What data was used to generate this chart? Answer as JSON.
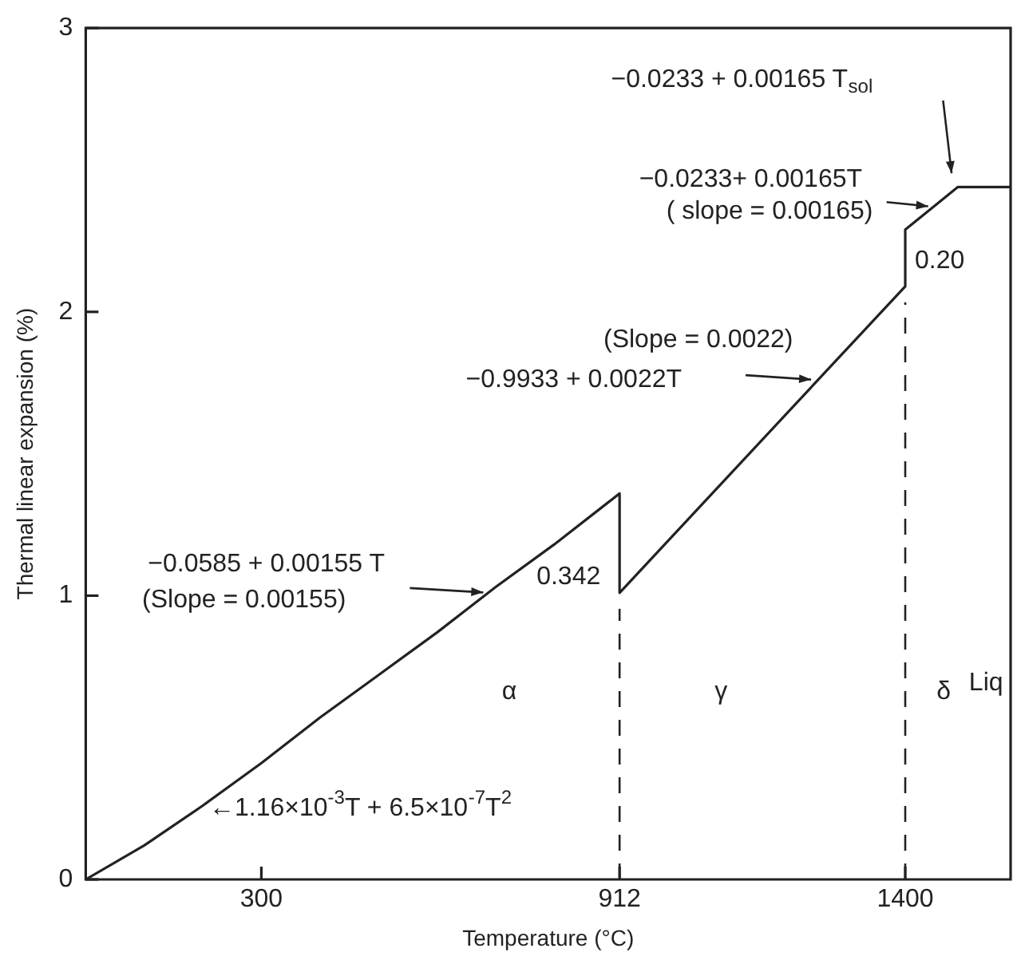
{
  "chart_data": {
    "type": "line",
    "xlabel": "Temperature (°C)",
    "ylabel": "Thermal linear expansion (%)",
    "series": [
      {
        "color": "#222222",
        "x": [
          0,
          100,
          200,
          300,
          400,
          500,
          600,
          700,
          800,
          912,
          912,
          1400,
          1400,
          1490,
          1580
        ],
        "values": [
          0,
          0.12,
          0.26,
          0.41,
          0.57,
          0.72,
          0.87,
          1.03,
          1.18,
          1.36,
          1.01,
          2.09,
          2.29,
          2.44,
          2.44
        ]
      }
    ],
    "xlim": [
      0,
      1580
    ],
    "xticks": [
      300,
      912,
      1400
    ],
    "ylim": [
      0,
      3
    ],
    "yticks": [
      0,
      1,
      2,
      3
    ],
    "grid": false,
    "legend": false,
    "marker": "none",
    "line_style": "solid",
    "ref_lines": [
      {
        "axis": "x",
        "value": 912,
        "line_style": "dashed"
      },
      {
        "axis": "x",
        "value": 1400,
        "line_style": "dashed"
      }
    ],
    "annotations": [
      "−0.0233 + 0.00165 T$_{sol}$",
      {
        "text": "−0.0233+ 0.00165T",
        "x": 1450,
        "y": 2.37
      },
      {
        "text": "( slope = 0.00165)",
        "x": 1450,
        "y": 2.37
      },
      {
        "text": "0.20",
        "x": 1400,
        "y": 2.19
      },
      {
        "text": "(Slope = 0.0022)",
        "x": 1250,
        "y": 1.76
      },
      "−0.9933 + 0.0022T",
      {
        "text": "−0.0585 + 0.00155 T",
        "x": 690,
        "y": 1.01
      },
      "(Slope = 0.00155)",
      {
        "text": "0.342",
        "x": 912,
        "y": 1.19
      },
      "α",
      "γ",
      "δ",
      "Liq",
      {
        "text": "←1.16×10$^{-3}$T + 6.5×10$^{-7}$T$^{2}$",
        "x": 200,
        "y": 0.26
      }
    ]
  }
}
